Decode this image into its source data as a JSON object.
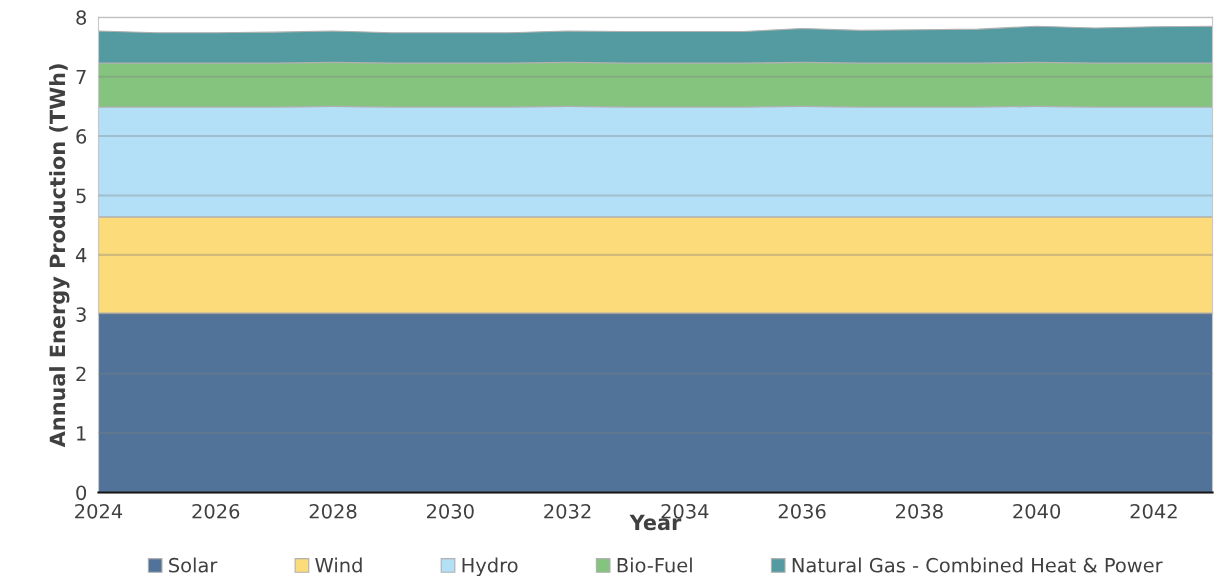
{
  "chart_data": {
    "type": "area",
    "stacked": true,
    "xlabel": "Year",
    "ylabel": "Annual Energy Production (TWh)",
    "x": [
      2024,
      2025,
      2026,
      2027,
      2028,
      2029,
      2030,
      2031,
      2032,
      2033,
      2034,
      2035,
      2036,
      2037,
      2038,
      2039,
      2040,
      2041,
      2042,
      2043
    ],
    "xlim": [
      2024,
      2043
    ],
    "xticks": [
      2024,
      2026,
      2028,
      2030,
      2032,
      2034,
      2036,
      2038,
      2040,
      2042
    ],
    "ylim": [
      0,
      8
    ],
    "yticks": [
      0,
      1,
      2,
      3,
      4,
      5,
      6,
      7,
      8
    ],
    "grid": "y",
    "legend": "bottom",
    "series": [
      {
        "name": "Solar",
        "color": "#51739a",
        "values": [
          3.02,
          3.02,
          3.02,
          3.02,
          3.02,
          3.02,
          3.02,
          3.02,
          3.02,
          3.02,
          3.02,
          3.02,
          3.02,
          3.02,
          3.02,
          3.02,
          3.02,
          3.02,
          3.02,
          3.02
        ]
      },
      {
        "name": "Wind",
        "color": "#fcdb7a",
        "values": [
          1.62,
          1.62,
          1.62,
          1.62,
          1.62,
          1.62,
          1.62,
          1.62,
          1.62,
          1.62,
          1.62,
          1.62,
          1.62,
          1.62,
          1.62,
          1.62,
          1.62,
          1.62,
          1.62,
          1.62
        ]
      },
      {
        "name": "Hydro",
        "color": "#b3e0f6",
        "values": [
          1.85,
          1.85,
          1.85,
          1.85,
          1.86,
          1.85,
          1.85,
          1.85,
          1.86,
          1.85,
          1.85,
          1.85,
          1.86,
          1.85,
          1.85,
          1.85,
          1.86,
          1.85,
          1.85,
          1.85
        ]
      },
      {
        "name": "Bio-Fuel",
        "color": "#85c47f",
        "values": [
          0.74,
          0.74,
          0.74,
          0.74,
          0.74,
          0.74,
          0.74,
          0.74,
          0.74,
          0.74,
          0.74,
          0.74,
          0.74,
          0.74,
          0.74,
          0.74,
          0.74,
          0.74,
          0.74,
          0.74
        ]
      },
      {
        "name": "Natural Gas - Combined Heat & Power",
        "color": "#539ba0",
        "values": [
          0.54,
          0.51,
          0.51,
          0.52,
          0.53,
          0.51,
          0.51,
          0.51,
          0.53,
          0.53,
          0.53,
          0.53,
          0.57,
          0.55,
          0.56,
          0.57,
          0.61,
          0.59,
          0.61,
          0.62
        ]
      }
    ]
  }
}
